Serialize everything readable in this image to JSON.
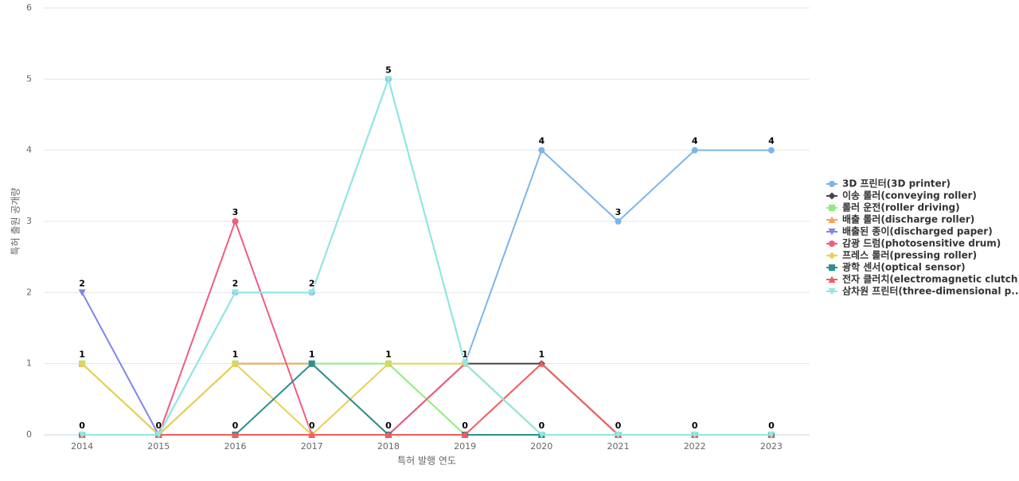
{
  "chart_data": {
    "type": "line",
    "x_label": "특허 발행 연도",
    "y_label": "특허 출원 공개량",
    "categories": [
      "2014",
      "2015",
      "2016",
      "2017",
      "2018",
      "2019",
      "2020",
      "2021",
      "2022",
      "2023"
    ],
    "ylim": [
      0,
      6
    ],
    "yticks": [
      0,
      1,
      2,
      3,
      4,
      5,
      6
    ],
    "grid": true,
    "legend": "right",
    "series": [
      {
        "name": "3D 프린터(3D printer)",
        "color": "#7cb5ec",
        "marker": "circle",
        "values": [
          0,
          0,
          2,
          2,
          5,
          1,
          4,
          3,
          4,
          4
        ]
      },
      {
        "name": "이송 롤러(conveying roller)",
        "color": "#434348",
        "marker": "diamond",
        "values": [
          0,
          0,
          0,
          0,
          0,
          1,
          1,
          0,
          0,
          0
        ]
      },
      {
        "name": "롤러 운전(roller driving)",
        "color": "#90ed7d",
        "marker": "square",
        "values": [
          1,
          0,
          1,
          1,
          1,
          0,
          0,
          0,
          0,
          0
        ]
      },
      {
        "name": "배출 롤러(discharge roller)",
        "color": "#f7a35c",
        "marker": "triangle",
        "values": [
          1,
          0,
          1,
          1,
          0,
          0,
          0,
          0,
          0,
          0
        ]
      },
      {
        "name": "배출된 종이(discharged paper)",
        "color": "#8085e9",
        "marker": "triangle-down",
        "values": [
          2,
          0,
          0,
          0,
          0,
          0,
          0,
          0,
          0,
          0
        ]
      },
      {
        "name": "감광 드럼(photosensitive drum)",
        "color": "#f15c80",
        "marker": "circle",
        "values": [
          0,
          0,
          3,
          0,
          0,
          1,
          0,
          0,
          0,
          0
        ]
      },
      {
        "name": "프레스 롤러(pressing roller)",
        "color": "#e4d354",
        "marker": "diamond",
        "values": [
          1,
          0,
          1,
          0,
          1,
          1,
          0,
          0,
          0,
          0
        ]
      },
      {
        "name": "광학 센서(optical sensor)",
        "color": "#2b908f",
        "marker": "square",
        "values": [
          0,
          0,
          0,
          1,
          0,
          0,
          0,
          0,
          0,
          0
        ]
      },
      {
        "name": "전자 클러치(electromagnetic clutch)",
        "color": "#f45b5b",
        "marker": "triangle",
        "values": [
          0,
          0,
          0,
          0,
          0,
          0,
          1,
          0,
          0,
          0
        ]
      },
      {
        "name": "삼차원 프린터(three-dimensional p...",
        "color": "#91e8e1",
        "marker": "triangle-down",
        "values": [
          0,
          0,
          2,
          2,
          5,
          1,
          0,
          0,
          0,
          0
        ]
      }
    ]
  }
}
